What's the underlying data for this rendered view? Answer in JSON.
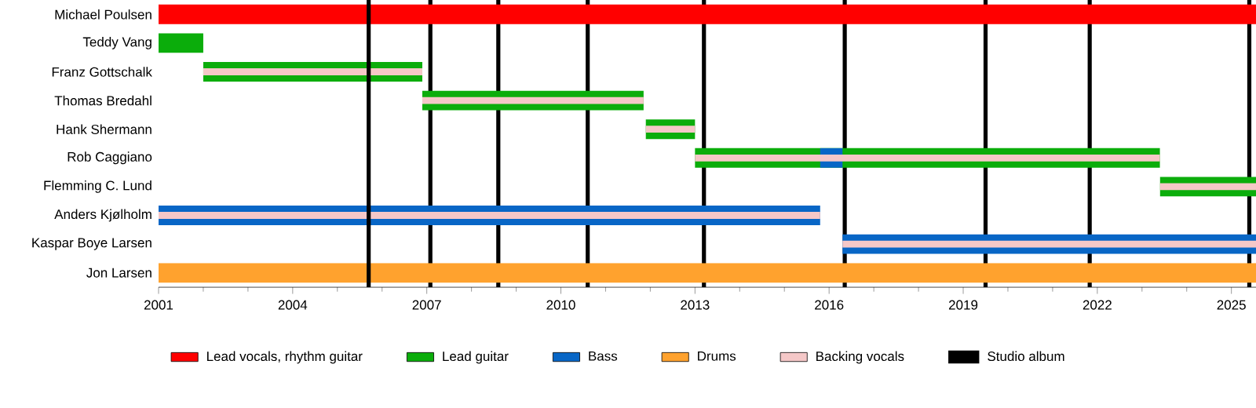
{
  "chart_data": {
    "type": "bar",
    "orientation": "horizontal",
    "categories": [
      "Michael Poulsen",
      "Teddy Vang",
      "Franz Gottschalk",
      "Thomas Bredahl",
      "Hank Shermann",
      "Rob Caggiano",
      "Flemming C. Lund",
      "Anders Kjølholm",
      "Kaspar Boye Larsen",
      "Jon Larsen"
    ],
    "series": [
      {
        "name": "Lead vocals, rhythm guitar",
        "color": "#ff0000",
        "values": [
          24.55,
          null,
          null,
          null,
          null,
          null,
          null,
          null,
          null,
          null
        ],
        "base": [
          2001,
          null,
          null,
          null,
          null,
          null,
          null,
          null,
          null,
          null
        ]
      },
      {
        "name": "Backing vocals",
        "color": "#f5c8c8",
        "values": [
          null,
          null,
          4.9,
          4.95,
          1.1,
          10.4,
          2.15,
          14.8,
          9.25,
          null
        ],
        "base": [
          null,
          null,
          2002,
          2006.9,
          2011.9,
          2013.0,
          2023.4,
          2001,
          2016.3,
          null
        ]
      },
      {
        "name": "Lead guitar",
        "color": "#0bad0b",
        "values": [
          null,
          1.0,
          4.9,
          4.95,
          1.1,
          10.4,
          2.15,
          null,
          null,
          null
        ],
        "base": [
          null,
          2001,
          2002,
          2006.9,
          2011.9,
          2013.0,
          2023.4,
          null,
          null,
          null
        ]
      },
      {
        "name": "Bass",
        "color": "#0866c6",
        "values": [
          null,
          null,
          null,
          null,
          null,
          0.5,
          null,
          14.8,
          9.25,
          null
        ],
        "base": [
          null,
          null,
          null,
          null,
          null,
          2015.8,
          null,
          2001,
          2016.3,
          null
        ]
      },
      {
        "name": "Drums",
        "color": "#ffa22e",
        "values": [
          null,
          null,
          null,
          null,
          null,
          null,
          null,
          null,
          null,
          24.55
        ],
        "base": [
          null,
          null,
          null,
          null,
          null,
          null,
          null,
          null,
          null,
          2001
        ]
      }
    ],
    "xlim": [
      2001,
      2025.55
    ],
    "xticks": [
      2001,
      2004,
      2007,
      2010,
      2013,
      2016,
      2019,
      2022,
      2025
    ],
    "ref_lines": [
      {
        "axis": "x",
        "value": 2005.7,
        "label": "Studio album",
        "color": "#000000"
      },
      {
        "axis": "x",
        "value": 2007.08,
        "color": "#000000"
      },
      {
        "axis": "x",
        "value": 2008.6,
        "color": "#000000"
      },
      {
        "axis": "x",
        "value": 2010.6,
        "color": "#000000"
      },
      {
        "axis": "x",
        "value": 2013.2,
        "color": "#000000"
      },
      {
        "axis": "x",
        "value": 2016.35,
        "color": "#000000"
      },
      {
        "axis": "x",
        "value": 2019.5,
        "color": "#000000"
      },
      {
        "axis": "x",
        "value": 2021.83,
        "color": "#000000"
      },
      {
        "axis": "x",
        "value": 2025.4,
        "color": "#000000"
      }
    ],
    "legend": "bottom"
  }
}
